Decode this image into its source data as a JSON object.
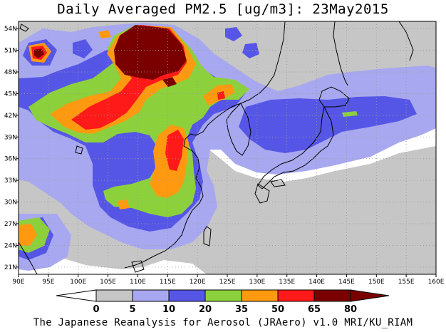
{
  "title": "Daily Averaged PM2.5 [ug/m3]: 23May2015",
  "credit": "The Japanese Reanalysis for Aerosol (JRAero) v1.0 MRI/KU_RIAM",
  "map": {
    "lon_range": [
      90,
      160
    ],
    "lat_range": [
      20,
      55
    ],
    "lon_ticks": [
      "90E",
      "95E",
      "100E",
      "105E",
      "110E",
      "115E",
      "120E",
      "125E",
      "130E",
      "135E",
      "140E",
      "145E",
      "150E",
      "155E",
      "160E"
    ],
    "lat_ticks": [
      "54N",
      "51N",
      "48N",
      "45N",
      "42N",
      "39N",
      "36N",
      "33N",
      "30N",
      "27N",
      "24N",
      "21N"
    ],
    "grid": "dotted"
  },
  "legend": {
    "labels": [
      "0",
      "5",
      "10",
      "20",
      "35",
      "50",
      "65",
      "80"
    ],
    "colors": [
      "#ffffff",
      "#c6c6c6",
      "#a8a8f0",
      "#5656e6",
      "#8cd13c",
      "#ff9a10",
      "#ff1a1a",
      "#7a0000"
    ],
    "arrows": "both ends"
  },
  "colors": {
    "gray": "#c6c6c6",
    "lightblue": "#a8a8f0",
    "blue": "#5656e6",
    "green": "#8cd13c",
    "orange": "#ff9a10",
    "red": "#ff1a1a",
    "darkred": "#7a0000"
  }
}
